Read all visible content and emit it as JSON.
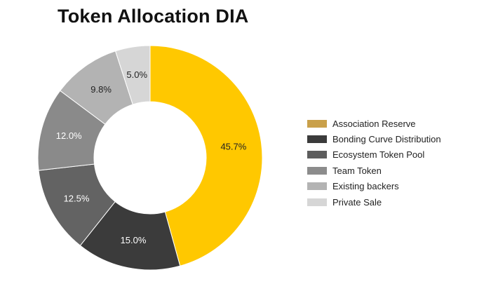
{
  "chart_data": {
    "type": "pie",
    "subtype": "donut",
    "title": "Token Allocation DIA",
    "slices": [
      {
        "label": "Association Reserve",
        "value": 45.7,
        "display": "45.7%",
        "color": "#ffc800",
        "legend_color": "#c9a04a",
        "text_color": "#222222"
      },
      {
        "label": "Bonding Curve Distribution",
        "value": 15.0,
        "display": "15.0%",
        "color": "#3b3b3b",
        "legend_color": "#3b3b3b",
        "text_color": "#ffffff"
      },
      {
        "label": "Ecosystem Token Pool",
        "value": 12.5,
        "display": "12.5%",
        "color": "#636363",
        "legend_color": "#5d5d5d",
        "text_color": "#ffffff"
      },
      {
        "label": "Team Token",
        "value": 12.0,
        "display": "12.0%",
        "color": "#8a8a8a",
        "legend_color": "#8c8c8c",
        "text_color": "#ffffff"
      },
      {
        "label": "Existing backers",
        "value": 9.8,
        "display": "9.8%",
        "color": "#b3b3b3",
        "legend_color": "#b3b3b3",
        "text_color": "#222222"
      },
      {
        "label": "Private Sale",
        "value": 5.0,
        "display": "5.0%",
        "color": "#d6d6d6",
        "legend_color": "#d6d6d6",
        "text_color": "#222222"
      }
    ],
    "legend_position": "right"
  }
}
